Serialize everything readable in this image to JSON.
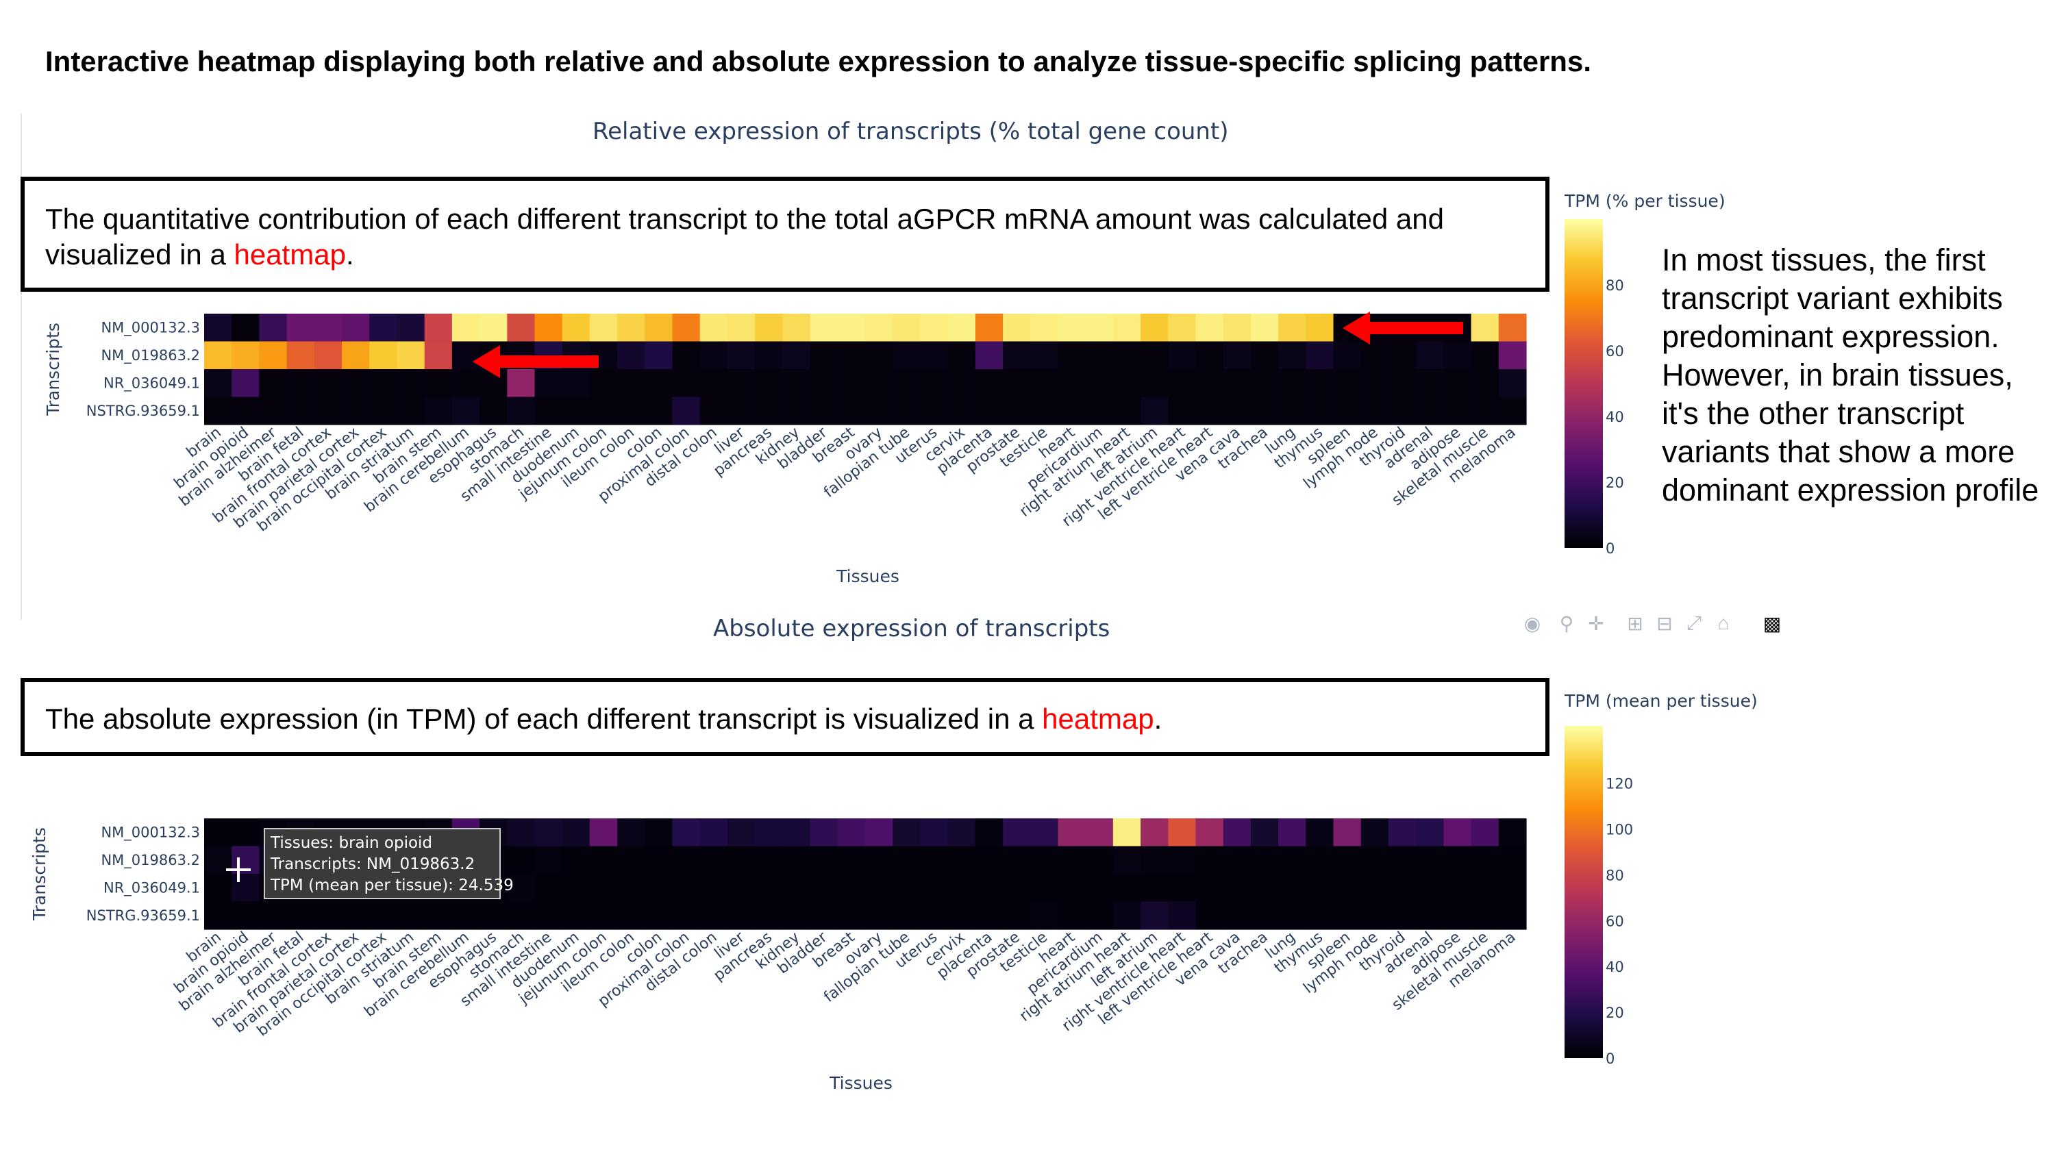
{
  "main_title": "Interactive heatmap displaying both relative and absolute expression to analyze tissue-specific splicing patterns.",
  "callout_relative": {
    "text": "The quantitative contribution of each different transcript to the total aGPCR mRNA amount was calculated and visualized in a ",
    "highlight": "heatmap",
    "end": "."
  },
  "callout_absolute": {
    "text": "The absolute expression (in TPM) of each different transcript is visualized in a ",
    "highlight": "heatmap",
    "end": "."
  },
  "side_note": "In most tissues, the first transcript variant exhibits predominant expression. However, in brain tissues, it's the other transcript variants that show a more dominant expression profile",
  "tooltip": {
    "line1": "Tissues: brain opioid",
    "line2": "Transcripts: NM_019863.2",
    "line3": "TPM (mean per tissue): 24.539"
  },
  "modebar_icons": [
    "camera-icon",
    "zoom-icon",
    "pan-icon",
    "zoom-in-icon",
    "zoom-out-icon",
    "autoscale-icon",
    "home-icon",
    "plotly-logo-icon"
  ],
  "chart_data": [
    {
      "type": "heatmap",
      "title": "Relative expression of transcripts (% total gene count)",
      "xlabel": "Tissues",
      "ylabel": "Transcripts",
      "colorbar_title": "TPM (% per tissue)",
      "colorbar_ticks": [
        0,
        20,
        40,
        60,
        80
      ],
      "zmin": 0,
      "zmax": 100,
      "colorscale": "inferno",
      "y": [
        "NM_000132.3",
        "NM_019863.2",
        "NR_036049.1",
        "NSTRG.93659.1"
      ],
      "x": [
        "brain",
        "brain opioid",
        "brain alzheimer",
        "brain fetal",
        "brain frontal cortex",
        "brain parietal cortex",
        "brain occipital cortex",
        "brain striatum",
        "brain stem",
        "brain cerebellum",
        "esophagus",
        "stomach",
        "small intestine",
        "duodenum",
        "jejunum colon",
        "ileum colon",
        "colon",
        "proximal colon",
        "distal colon",
        "liver",
        "pancreas",
        "kidney",
        "bladder",
        "breast",
        "ovary",
        "fallopian tube",
        "uterus",
        "cervix",
        "placenta",
        "prostate",
        "testicle",
        "heart",
        "pericardium",
        "right atrium heart",
        "left atrium",
        "right ventricle heart",
        "left ventricle heart",
        "vena cava",
        "trachea",
        "lung",
        "thymus",
        "spleen",
        "lymph node",
        "thyroid",
        "adrenal",
        "adipose",
        "skeletal muscle",
        "melanoma"
      ],
      "z": [
        [
          8,
          2,
          18,
          30,
          30,
          28,
          12,
          10,
          55,
          96,
          97,
          58,
          75,
          88,
          94,
          90,
          85,
          72,
          95,
          94,
          89,
          92,
          97,
          97,
          96,
          95,
          96,
          97,
          72,
          95,
          96,
          97,
          97,
          96,
          88,
          92,
          96,
          94,
          97,
          90,
          88,
          2,
          2,
          2,
          2,
          2,
          94,
          68
        ],
        [
          85,
          82,
          78,
          65,
          62,
          80,
          88,
          90,
          56,
          3,
          2,
          3,
          12,
          5,
          3,
          8,
          12,
          2,
          3,
          5,
          3,
          5,
          2,
          2,
          2,
          3,
          3,
          2,
          20,
          4,
          4,
          2,
          2,
          2,
          2,
          3,
          2,
          4,
          2,
          4,
          8,
          3,
          2,
          2,
          5,
          3,
          2,
          30
        ],
        [
          4,
          20,
          2,
          2,
          2,
          2,
          2,
          2,
          2,
          2,
          2,
          40,
          3,
          3,
          2,
          2,
          2,
          2,
          2,
          2,
          2,
          2,
          2,
          2,
          2,
          2,
          2,
          2,
          2,
          2,
          2,
          2,
          2,
          2,
          2,
          2,
          2,
          2,
          2,
          2,
          2,
          2,
          2,
          2,
          2,
          2,
          2,
          5
        ],
        [
          2,
          2,
          2,
          2,
          2,
          2,
          2,
          2,
          3,
          5,
          2,
          4,
          2,
          2,
          2,
          2,
          2,
          10,
          2,
          2,
          2,
          2,
          2,
          2,
          2,
          2,
          2,
          2,
          2,
          2,
          2,
          2,
          2,
          2,
          5,
          2,
          2,
          2,
          2,
          2,
          2,
          2,
          2,
          2,
          2,
          2,
          2,
          2
        ]
      ]
    },
    {
      "type": "heatmap",
      "title": "Absolute expression of transcripts",
      "xlabel": "Tissues",
      "ylabel": "Transcripts",
      "colorbar_title": "TPM (mean per tissue)",
      "colorbar_ticks": [
        0,
        20,
        40,
        60,
        80,
        100,
        120
      ],
      "zmin": 0,
      "zmax": 145,
      "colorscale": "inferno",
      "y": [
        "NM_000132.3",
        "NM_019863.2",
        "NR_036049.1",
        "NSTRG.93659.1"
      ],
      "x": [
        "brain",
        "brain opioid",
        "brain alzheimer",
        "brain fetal",
        "brain frontal cortex",
        "brain parietal cortex",
        "brain occipital cortex",
        "brain striatum",
        "brain stem",
        "brain cerebellum",
        "esophagus",
        "stomach",
        "small intestine",
        "duodenum",
        "jejunum colon",
        "ileum colon",
        "colon",
        "proximal colon",
        "distal colon",
        "liver",
        "pancreas",
        "kidney",
        "bladder",
        "breast",
        "ovary",
        "fallopian tube",
        "uterus",
        "cervix",
        "placenta",
        "prostate",
        "testicle",
        "heart",
        "pericardium",
        "right atrium heart",
        "left atrium",
        "right ventricle heart",
        "left ventricle heart",
        "vena cava",
        "trachea",
        "lung",
        "thymus",
        "spleen",
        "lymph node",
        "thyroid",
        "adrenal",
        "adipose",
        "skeletal muscle",
        "melanoma"
      ],
      "z": [
        [
          2,
          2,
          3,
          4,
          3,
          3,
          3,
          3,
          4,
          32,
          6,
          10,
          12,
          10,
          42,
          6,
          3,
          20,
          18,
          12,
          14,
          14,
          24,
          30,
          34,
          12,
          16,
          12,
          3,
          22,
          22,
          58,
          58,
          140,
          62,
          88,
          62,
          30,
          12,
          30,
          5,
          50,
          6,
          22,
          20,
          40,
          32,
          3
        ],
        [
          4,
          24.539,
          6,
          5,
          5,
          5,
          6,
          6,
          4,
          2,
          2,
          2,
          3,
          2,
          2,
          2,
          2,
          2,
          2,
          2,
          2,
          2,
          2,
          2,
          2,
          2,
          2,
          2,
          2,
          2,
          2,
          2,
          2,
          4,
          3,
          3,
          2,
          2,
          2,
          2,
          2,
          2,
          2,
          2,
          2,
          2,
          2,
          2
        ],
        [
          2,
          8,
          2,
          2,
          2,
          2,
          2,
          2,
          2,
          2,
          2,
          3,
          2,
          2,
          2,
          2,
          2,
          2,
          2,
          2,
          2,
          2,
          2,
          2,
          2,
          2,
          2,
          2,
          2,
          2,
          2,
          2,
          2,
          2,
          2,
          2,
          2,
          2,
          2,
          2,
          2,
          2,
          2,
          2,
          2,
          2,
          2,
          2
        ],
        [
          2,
          2,
          2,
          2,
          2,
          2,
          2,
          2,
          2,
          2,
          2,
          2,
          2,
          2,
          2,
          2,
          2,
          2,
          2,
          2,
          2,
          2,
          2,
          2,
          2,
          2,
          2,
          2,
          2,
          2,
          3,
          2,
          2,
          5,
          12,
          8,
          2,
          2,
          2,
          2,
          2,
          2,
          2,
          2,
          2,
          2,
          2,
          2
        ]
      ]
    }
  ]
}
